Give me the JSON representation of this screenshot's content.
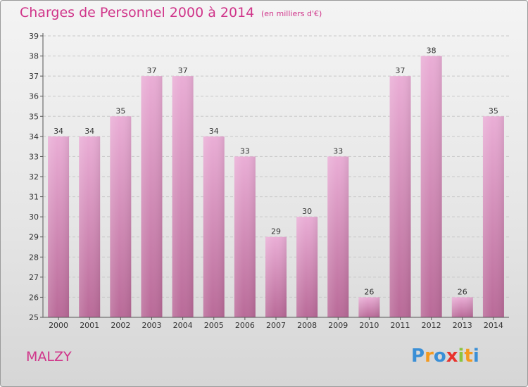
{
  "title": "Charges de Personnel 2000 à 2014",
  "subtitle": "(en milliers d'€)",
  "location": "MALZY",
  "brand": {
    "letters": [
      "P",
      "r",
      "o",
      "x",
      "i",
      "t",
      "i"
    ],
    "colors": [
      "#3a8fd6",
      "#f39a1f",
      "#3a8fd6",
      "#e8322c",
      "#8bc43f",
      "#f39a1f",
      "#3a8fd6"
    ]
  },
  "colors": {
    "accent": "#d0358a",
    "bar_top": "#eaaed6",
    "bar_bottom": "#b96a98",
    "grid": "#c8c8c8",
    "axis": "#555555"
  },
  "chart_data": {
    "type": "bar",
    "categories": [
      "2000",
      "2001",
      "2002",
      "2003",
      "2004",
      "2005",
      "2006",
      "2007",
      "2008",
      "2009",
      "2010",
      "2011",
      "2012",
      "2013",
      "2014"
    ],
    "values": [
      34,
      34,
      35,
      37,
      37,
      34,
      33,
      29,
      30,
      33,
      26,
      37,
      38,
      26,
      35
    ],
    "ylim": [
      25,
      39
    ],
    "yticks": [
      25,
      26,
      27,
      28,
      29,
      30,
      31,
      32,
      33,
      34,
      35,
      36,
      37,
      38,
      39
    ],
    "grid": true,
    "data_labels": true
  }
}
